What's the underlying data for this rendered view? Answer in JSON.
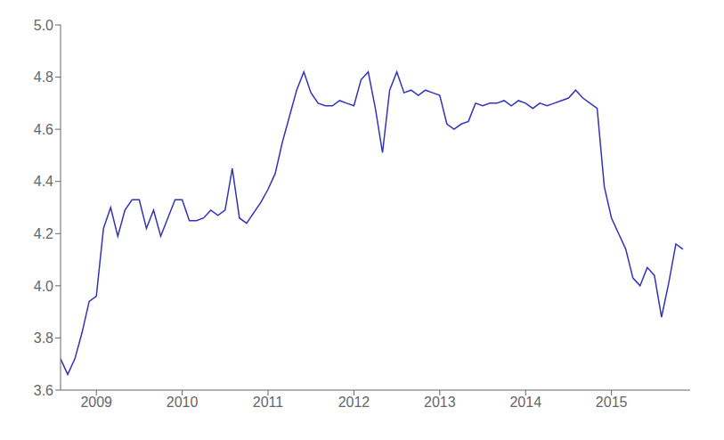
{
  "chart_data": {
    "type": "line",
    "color": "#3333BB",
    "grid": false,
    "x": [
      2008.583,
      2008.6663333333,
      2008.7496666667,
      2008.833,
      2008.9163333333,
      2008.9996666667,
      2009.083,
      2009.1663333333,
      2009.2496666667,
      2009.333,
      2009.4163333333,
      2009.4996666667,
      2009.583,
      2009.6663333333,
      2009.7496666667,
      2009.833,
      2009.9163333333,
      2009.9996666667,
      2010.083,
      2010.1663333333,
      2010.2496666667,
      2010.333,
      2010.4163333333,
      2010.4996666667,
      2010.583,
      2010.6663333333,
      2010.7496666667,
      2010.833,
      2010.9163333333,
      2010.9996666667,
      2011.083,
      2011.1663333333,
      2011.2496666667,
      2011.333,
      2011.4163333333,
      2011.4996666667,
      2011.583,
      2011.6663333333,
      2011.7496666667,
      2011.833,
      2011.9163333333,
      2011.9996666667,
      2012.083,
      2012.1663333333,
      2012.2496666667,
      2012.333,
      2012.4163333333,
      2012.4996666667,
      2012.583,
      2012.6663333333,
      2012.7496666667,
      2012.833,
      2012.9163333333,
      2012.9996666667,
      2013.083,
      2013.1663333333,
      2013.2496666667,
      2013.333,
      2013.4163333333,
      2013.4996666667,
      2013.583,
      2013.6663333333,
      2013.7496666667,
      2013.833,
      2013.9163333333,
      2013.9996666667,
      2014.083,
      2014.1663333333,
      2014.2496666667,
      2014.333,
      2014.4163333333,
      2014.4996666667,
      2014.583,
      2014.6663333333,
      2014.7496666667,
      2014.833,
      2014.9163333333,
      2014.9996666667,
      2015.083,
      2015.1663333333,
      2015.2496666667,
      2015.333,
      2015.4163333333,
      2015.4996666667,
      2015.583,
      2015.6663333333,
      2015.7496666667,
      2015.833
    ],
    "values": [
      3.72,
      3.66,
      3.72,
      3.82,
      3.94,
      3.96,
      4.22,
      4.3,
      4.19,
      4.29,
      4.33,
      4.33,
      4.22,
      4.29,
      4.19,
      4.26,
      4.33,
      4.33,
      4.25,
      4.25,
      4.26,
      4.29,
      4.27,
      4.29,
      4.45,
      4.26,
      4.24,
      4.28,
      4.32,
      4.37,
      4.43,
      4.55,
      4.65,
      4.75,
      4.82,
      4.74,
      4.7,
      4.69,
      4.69,
      4.71,
      4.7,
      4.69,
      4.79,
      4.82,
      4.68,
      4.51,
      4.75,
      4.82,
      4.74,
      4.75,
      4.73,
      4.75,
      4.74,
      4.73,
      4.62,
      4.6,
      4.62,
      4.63,
      4.7,
      4.69,
      4.7,
      4.7,
      4.71,
      4.69,
      4.71,
      4.7,
      4.68,
      4.7,
      4.69,
      4.7,
      4.71,
      4.72,
      4.75,
      4.72,
      4.7,
      4.68,
      4.38,
      4.26,
      4.2,
      4.14,
      4.03,
      4.0,
      4.07,
      4.04,
      3.88,
      4.01,
      4.16,
      4.14
    ],
    "xlim": [
      2008.583,
      2015.9163333333
    ],
    "xticks": [
      2009,
      2010,
      2011,
      2012,
      2013,
      2014,
      2015
    ],
    "ylim": [
      3.6,
      5.0
    ],
    "yticks": [
      3.6,
      3.8,
      {
        "value": 4,
        "label": "4.0"
      },
      4.2,
      4.4,
      4.6,
      4.8,
      {
        "value": 5,
        "label": "5.0"
      }
    ]
  }
}
